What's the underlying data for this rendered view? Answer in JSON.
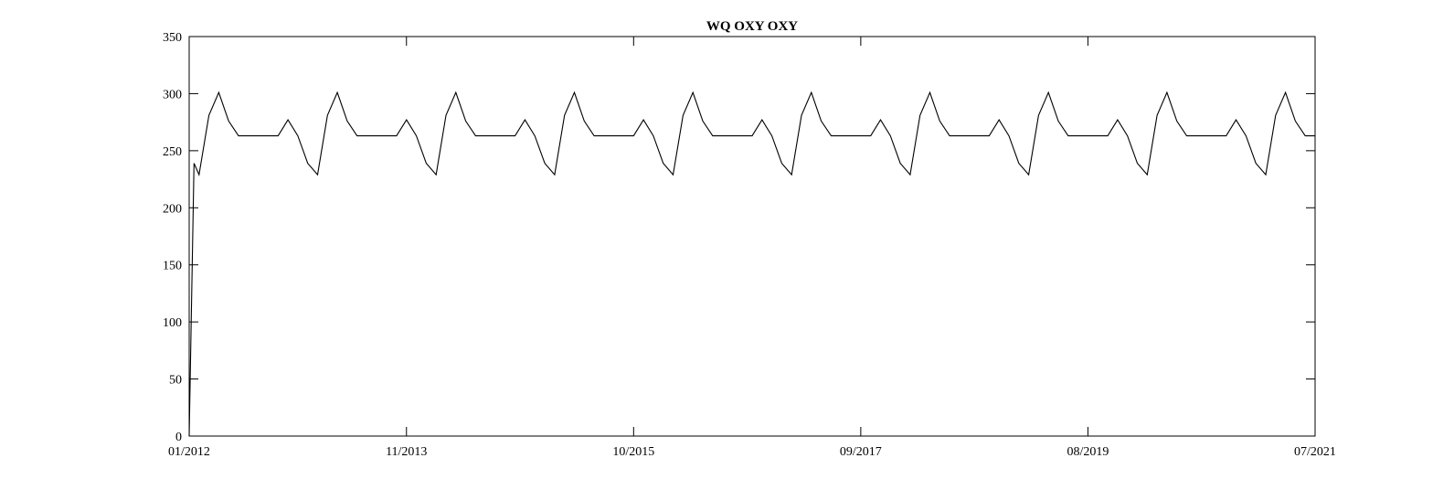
{
  "chart_data": {
    "type": "line",
    "title": "WQ OXY OXY",
    "xlabel": "",
    "ylabel": "",
    "ylim": [
      0,
      350
    ],
    "yticks": [
      0,
      50,
      100,
      150,
      200,
      250,
      300,
      350
    ],
    "xlim": [
      "2012-01",
      "2021-07"
    ],
    "xtick_labels": [
      "01/2012",
      "11/2013",
      "10/2015",
      "09/2017",
      "08/2019",
      "07/2021"
    ],
    "grid": false,
    "series": [
      {
        "x": [
          "2012-01-01",
          "2012-01-16",
          "2012-02-01",
          "2012-03-01",
          "2012-04-01",
          "2012-05-01",
          "2012-06-01",
          "2012-07-01",
          "2012-08-01",
          "2012-09-01",
          "2012-10-01",
          "2012-11-01",
          "2012-12-01",
          "2013-01-01",
          "2013-02-01",
          "2013-03-01",
          "2013-04-01",
          "2013-05-01",
          "2013-06-01",
          "2013-07-01",
          "2013-08-01",
          "2013-09-01",
          "2013-10-01",
          "2013-11-01",
          "2013-12-01",
          "2014-01-01",
          "2014-02-01",
          "2014-03-01",
          "2014-04-01",
          "2014-05-01",
          "2014-06-01",
          "2014-07-01",
          "2014-08-01",
          "2014-09-01",
          "2014-10-01",
          "2014-11-01",
          "2014-12-01",
          "2015-01-01",
          "2015-02-01",
          "2015-03-01",
          "2015-04-01",
          "2015-05-01",
          "2015-06-01",
          "2015-07-01",
          "2015-08-01",
          "2015-09-01",
          "2015-10-01",
          "2015-11-01",
          "2015-12-01",
          "2016-01-01",
          "2016-02-01",
          "2016-03-01",
          "2016-04-01",
          "2016-05-01",
          "2016-06-01",
          "2016-07-01",
          "2016-08-01",
          "2016-09-01",
          "2016-10-01",
          "2016-11-01",
          "2016-12-01",
          "2017-01-01",
          "2017-02-01",
          "2017-03-01",
          "2017-04-01",
          "2017-05-01",
          "2017-06-01",
          "2017-07-01",
          "2017-08-01",
          "2017-09-01",
          "2017-10-01",
          "2017-11-01",
          "2017-12-01",
          "2018-01-01",
          "2018-02-01",
          "2018-03-01",
          "2018-04-01",
          "2018-05-01",
          "2018-06-01",
          "2018-07-01",
          "2018-08-01",
          "2018-09-01",
          "2018-10-01",
          "2018-11-01",
          "2018-12-01",
          "2019-01-01",
          "2019-02-01",
          "2019-03-01",
          "2019-04-01",
          "2019-05-01",
          "2019-06-01",
          "2019-07-01",
          "2019-08-01",
          "2019-09-01",
          "2019-10-01",
          "2019-11-01",
          "2019-12-01",
          "2020-01-01",
          "2020-02-01",
          "2020-03-01",
          "2020-04-01",
          "2020-05-01",
          "2020-06-01",
          "2020-07-01",
          "2020-08-01",
          "2020-09-01",
          "2020-10-01",
          "2020-11-01",
          "2020-12-01",
          "2021-01-01",
          "2021-02-01",
          "2021-03-01",
          "2021-04-01",
          "2021-05-01",
          "2021-06-01",
          "2021-07-01"
        ],
        "values": [
          0,
          239,
          229,
          281,
          301,
          276,
          263,
          263,
          263,
          263,
          263,
          277,
          263,
          239,
          229,
          281,
          301,
          276,
          263,
          263,
          263,
          263,
          263,
          277,
          263,
          239,
          229,
          281,
          301,
          276,
          263,
          263,
          263,
          263,
          263,
          277,
          263,
          239,
          229,
          281,
          301,
          276,
          263,
          263,
          263,
          263,
          263,
          277,
          263,
          239,
          229,
          281,
          301,
          276,
          263,
          263,
          263,
          263,
          263,
          277,
          263,
          239,
          229,
          281,
          301,
          276,
          263,
          263,
          263,
          263,
          263,
          277,
          263,
          239,
          229,
          281,
          301,
          276,
          263,
          263,
          263,
          263,
          263,
          277,
          263,
          239,
          229,
          281,
          301,
          276,
          263,
          263,
          263,
          263,
          263,
          277,
          263,
          239,
          229,
          281,
          301,
          276,
          263,
          263,
          263,
          263,
          263,
          277,
          263,
          239,
          229,
          281,
          301,
          276,
          263,
          263
        ]
      }
    ]
  }
}
